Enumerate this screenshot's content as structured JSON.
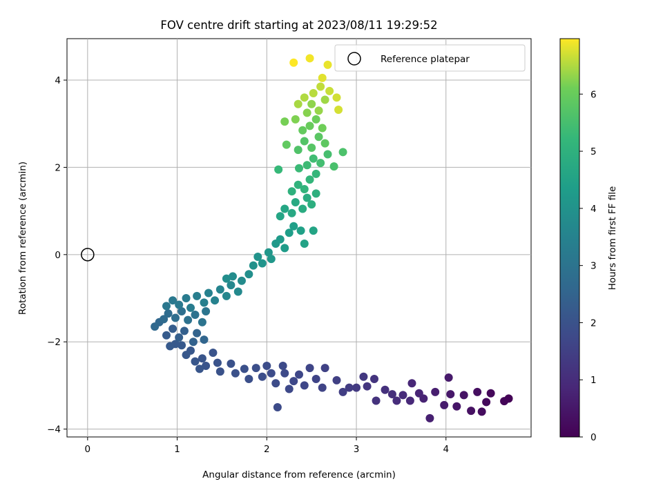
{
  "chart_data": {
    "type": "scatter",
    "title": "FOV centre drift starting at 2023/08/11 19:29:52",
    "xlabel": "Angular distance from reference (arcmin)",
    "ylabel": "Rotation from reference (arcmin)",
    "xlim": [
      -0.23,
      4.95
    ],
    "ylim": [
      -4.18,
      4.95
    ],
    "xticks": [
      0,
      1,
      2,
      3,
      4
    ],
    "xtick_labels": [
      "0",
      "1",
      "2",
      "3",
      "4"
    ],
    "yticks": [
      4,
      2,
      0,
      -2,
      -4
    ],
    "ytick_labels": [
      "4",
      "2",
      "0",
      "−2",
      "−4"
    ],
    "grid": true,
    "legend": {
      "placement": "top-right",
      "entries": [
        "Reference platepar"
      ]
    },
    "reference_point": {
      "x": 0,
      "y": 0,
      "marker": "open-circle"
    },
    "colorbar": {
      "label": "Hours from first FF file",
      "range": [
        0,
        6.97
      ],
      "ticks": [
        0,
        1,
        2,
        3,
        4,
        5,
        6
      ],
      "tick_labels": [
        "0",
        "1",
        "2",
        "3",
        "4",
        "5",
        "6"
      ],
      "colormap": "viridis"
    },
    "series": [
      {
        "points": [
          [
            4.7,
            -3.3,
            0.05
          ],
          [
            4.65,
            -3.36,
            0.1
          ],
          [
            4.5,
            -3.18,
            0.15
          ],
          [
            4.45,
            -3.38,
            0.2
          ],
          [
            4.4,
            -3.6,
            0.25
          ],
          [
            4.35,
            -3.15,
            0.3
          ],
          [
            4.28,
            -3.58,
            0.35
          ],
          [
            4.2,
            -3.22,
            0.4
          ],
          [
            4.12,
            -3.48,
            0.45
          ],
          [
            4.05,
            -3.2,
            0.5
          ],
          [
            4.03,
            -2.82,
            0.55
          ],
          [
            3.98,
            -3.45,
            0.6
          ],
          [
            3.88,
            -3.15,
            0.65
          ],
          [
            3.82,
            -3.75,
            0.7
          ],
          [
            3.75,
            -3.3,
            0.75
          ],
          [
            3.7,
            -3.18,
            0.8
          ],
          [
            3.62,
            -2.95,
            0.85
          ],
          [
            3.6,
            -3.35,
            0.9
          ],
          [
            3.52,
            -3.22,
            0.95
          ],
          [
            3.45,
            -3.35,
            1.0
          ],
          [
            3.4,
            -3.2,
            1.05
          ],
          [
            3.32,
            -3.1,
            1.1
          ],
          [
            3.22,
            -3.35,
            1.15
          ],
          [
            3.2,
            -2.85,
            1.2
          ],
          [
            3.12,
            -3.02,
            1.25
          ],
          [
            3.08,
            -2.8,
            1.3
          ],
          [
            3.0,
            -3.05,
            1.35
          ],
          [
            2.92,
            -3.05,
            1.4
          ],
          [
            2.85,
            -3.15,
            1.45
          ],
          [
            2.78,
            -2.88,
            1.5
          ],
          [
            2.65,
            -2.6,
            1.55
          ],
          [
            2.62,
            -3.05,
            1.6
          ],
          [
            2.55,
            -2.85,
            1.62
          ],
          [
            2.48,
            -2.6,
            1.65
          ],
          [
            2.42,
            -3.0,
            1.68
          ],
          [
            2.36,
            -2.75,
            1.7
          ],
          [
            2.3,
            -2.9,
            1.72
          ],
          [
            2.25,
            -3.08,
            1.74
          ],
          [
            2.2,
            -2.72,
            1.76
          ],
          [
            2.18,
            -2.55,
            1.78
          ],
          [
            2.12,
            -3.5,
            1.8
          ],
          [
            2.1,
            -2.95,
            1.82
          ],
          [
            2.05,
            -2.72,
            1.84
          ],
          [
            2.0,
            -2.55,
            1.86
          ],
          [
            1.95,
            -2.8,
            1.88
          ],
          [
            1.88,
            -2.6,
            1.9
          ],
          [
            1.8,
            -2.85,
            1.92
          ],
          [
            1.75,
            -2.62,
            1.94
          ],
          [
            1.65,
            -2.72,
            1.96
          ],
          [
            1.6,
            -2.5,
            1.98
          ],
          [
            1.48,
            -2.68,
            2.0
          ],
          [
            1.45,
            -2.48,
            2.02
          ],
          [
            1.4,
            -2.25,
            2.04
          ],
          [
            1.32,
            -2.55,
            2.06
          ],
          [
            1.28,
            -2.38,
            2.08
          ],
          [
            1.25,
            -2.62,
            2.1
          ],
          [
            1.2,
            -2.45,
            2.12
          ],
          [
            1.15,
            -2.2,
            2.14
          ],
          [
            1.1,
            -2.3,
            2.16
          ],
          [
            1.05,
            -2.08,
            2.18
          ],
          [
            0.98,
            -2.05,
            2.2
          ],
          [
            0.92,
            -2.1,
            2.22
          ],
          [
            0.88,
            -1.85,
            2.25
          ],
          [
            0.95,
            -1.7,
            2.3
          ],
          [
            1.02,
            -1.9,
            2.35
          ],
          [
            1.08,
            -1.75,
            2.4
          ],
          [
            1.18,
            -2.0,
            2.45
          ],
          [
            1.22,
            -1.8,
            2.5
          ],
          [
            1.3,
            -1.95,
            2.55
          ],
          [
            0.8,
            -1.55,
            2.6
          ],
          [
            0.75,
            -1.65,
            2.65
          ],
          [
            0.85,
            -1.48,
            2.7
          ],
          [
            0.9,
            -1.35,
            2.75
          ],
          [
            0.98,
            -1.45,
            2.8
          ],
          [
            1.05,
            -1.3,
            2.85
          ],
          [
            1.12,
            -1.5,
            2.9
          ],
          [
            1.2,
            -1.38,
            2.95
          ],
          [
            1.28,
            -1.55,
            3.0
          ],
          [
            1.32,
            -1.3,
            3.05
          ],
          [
            0.88,
            -1.18,
            3.1
          ],
          [
            0.95,
            -1.05,
            3.15
          ],
          [
            1.02,
            -1.15,
            3.2
          ],
          [
            1.1,
            -1.0,
            3.25
          ],
          [
            1.15,
            -1.22,
            3.3
          ],
          [
            1.22,
            -0.95,
            3.35
          ],
          [
            1.3,
            -1.1,
            3.4
          ],
          [
            1.35,
            -0.88,
            3.45
          ],
          [
            1.42,
            -1.05,
            3.5
          ],
          [
            1.48,
            -0.8,
            3.55
          ],
          [
            1.55,
            -0.95,
            3.6
          ],
          [
            1.6,
            -0.7,
            3.65
          ],
          [
            1.68,
            -0.85,
            3.7
          ],
          [
            1.72,
            -0.6,
            3.75
          ],
          [
            1.62,
            -0.5,
            3.8
          ],
          [
            1.55,
            -0.55,
            3.85
          ],
          [
            1.8,
            -0.45,
            3.9
          ],
          [
            1.85,
            -0.25,
            3.95
          ],
          [
            1.9,
            -0.05,
            4.0
          ],
          [
            1.95,
            -0.2,
            4.05
          ],
          [
            2.02,
            0.05,
            4.1
          ],
          [
            2.05,
            -0.1,
            4.15
          ],
          [
            2.1,
            0.25,
            4.2
          ],
          [
            2.15,
            0.35,
            4.25
          ],
          [
            2.2,
            0.15,
            4.3
          ],
          [
            2.25,
            0.5,
            4.35
          ],
          [
            2.3,
            0.65,
            4.4
          ],
          [
            2.38,
            0.55,
            4.45
          ],
          [
            2.42,
            0.25,
            4.5
          ],
          [
            2.52,
            0.55,
            4.55
          ],
          [
            2.15,
            0.88,
            4.6
          ],
          [
            2.2,
            1.05,
            4.65
          ],
          [
            2.28,
            0.95,
            4.7
          ],
          [
            2.32,
            1.2,
            4.75
          ],
          [
            2.4,
            1.05,
            4.8
          ],
          [
            2.45,
            1.3,
            4.85
          ],
          [
            2.5,
            1.15,
            4.9
          ],
          [
            2.55,
            1.4,
            4.95
          ],
          [
            2.28,
            1.45,
            5.0
          ],
          [
            2.35,
            1.6,
            5.05
          ],
          [
            2.42,
            1.5,
            5.1
          ],
          [
            2.48,
            1.72,
            5.15
          ],
          [
            2.55,
            1.85,
            5.2
          ],
          [
            2.13,
            1.95,
            5.25
          ],
          [
            2.36,
            1.98,
            5.3
          ],
          [
            2.45,
            2.05,
            5.35
          ],
          [
            2.52,
            2.2,
            5.4
          ],
          [
            2.6,
            2.1,
            5.45
          ],
          [
            2.68,
            2.3,
            5.5
          ],
          [
            2.75,
            2.02,
            5.55
          ],
          [
            2.85,
            2.35,
            5.6
          ],
          [
            2.35,
            2.4,
            5.65
          ],
          [
            2.42,
            2.6,
            5.7
          ],
          [
            2.5,
            2.45,
            5.75
          ],
          [
            2.58,
            2.7,
            5.8
          ],
          [
            2.65,
            2.55,
            5.85
          ],
          [
            2.22,
            2.52,
            5.9
          ],
          [
            2.4,
            2.85,
            5.95
          ],
          [
            2.48,
            2.95,
            6.0
          ],
          [
            2.55,
            3.1,
            6.05
          ],
          [
            2.62,
            2.9,
            6.1
          ],
          [
            2.2,
            3.05,
            6.15
          ],
          [
            2.32,
            3.1,
            6.2
          ],
          [
            2.45,
            3.25,
            6.25
          ],
          [
            2.5,
            3.45,
            6.3
          ],
          [
            2.58,
            3.3,
            6.35
          ],
          [
            2.65,
            3.55,
            6.4
          ],
          [
            2.35,
            3.45,
            6.45
          ],
          [
            2.42,
            3.6,
            6.5
          ],
          [
            2.52,
            3.7,
            6.55
          ],
          [
            2.6,
            3.85,
            6.6
          ],
          [
            2.7,
            3.75,
            6.65
          ],
          [
            2.78,
            3.6,
            6.7
          ],
          [
            2.8,
            3.32,
            6.72
          ],
          [
            2.62,
            4.05,
            6.8
          ],
          [
            2.68,
            4.35,
            6.85
          ],
          [
            2.48,
            4.5,
            6.9
          ],
          [
            2.3,
            4.4,
            6.97
          ]
        ]
      }
    ]
  }
}
